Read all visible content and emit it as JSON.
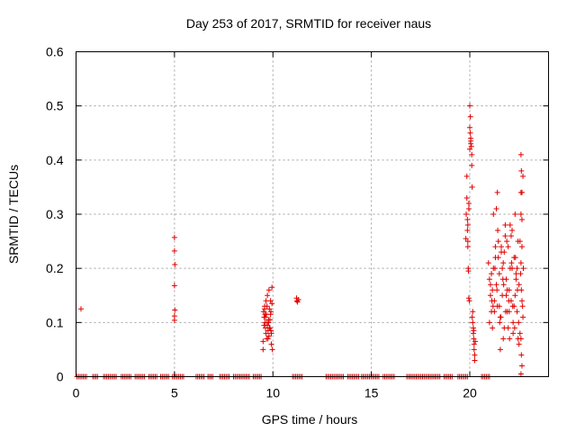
{
  "chart_data": {
    "type": "scatter",
    "title": "Day 253 of 2017, SRMTID for receiver naus",
    "xlabel": "GPS time / hours",
    "ylabel": "SRMTID / TECUs",
    "xlim": [
      0,
      24
    ],
    "ylim": [
      0,
      0.6
    ],
    "x_ticks": [
      0,
      5,
      10,
      15,
      20
    ],
    "y_ticks": [
      0,
      0.1,
      0.2,
      0.3,
      0.4,
      0.5,
      0.6
    ],
    "x_tick_labels": [
      "0",
      "5",
      "10",
      "15",
      "20"
    ],
    "y_tick_labels": [
      "0",
      "0.1",
      "0.2",
      "0.3",
      "0.4",
      "0.5",
      "0.6"
    ],
    "grid": true,
    "marker": "plus",
    "color": "#e00000",
    "series": [
      {
        "name": "SRMTID",
        "x": [
          0.25,
          5.0,
          5.0,
          5.02,
          5.0,
          5.02,
          5.0,
          5.0,
          9.5,
          9.52,
          9.55,
          9.58,
          9.6,
          9.62,
          9.65,
          9.67,
          9.7,
          9.72,
          9.75,
          9.78,
          9.8,
          9.82,
          9.85,
          9.88,
          9.9,
          9.92,
          9.95,
          9.97,
          9.6,
          9.7,
          9.8,
          9.9,
          9.55,
          9.65,
          9.75,
          9.85,
          9.95,
          9.5,
          9.62,
          9.72,
          9.82,
          9.92,
          9.58,
          9.68,
          9.78,
          9.88,
          11.2,
          11.25,
          11.3,
          11.22,
          19.8,
          19.82,
          19.85,
          19.88,
          19.9,
          19.95,
          20.0,
          20.02,
          20.05,
          19.85,
          19.9,
          19.92,
          19.95,
          19.98,
          20.0,
          20.05,
          20.1,
          20.12,
          20.15,
          20.18,
          20.2,
          20.22,
          20.25,
          20.28,
          19.9,
          19.95,
          20.0,
          20.05,
          20.1,
          20.15,
          20.2,
          20.25,
          19.88,
          19.93,
          20.03,
          20.08,
          20.12,
          20.18,
          20.22,
          20.95,
          21.0,
          21.05,
          21.1,
          21.15,
          21.2,
          21.25,
          21.3,
          21.35,
          21.4,
          21.45,
          21.5,
          21.55,
          21.6,
          21.65,
          21.7,
          21.75,
          21.8,
          21.85,
          21.9,
          21.95,
          22.0,
          22.05,
          22.1,
          22.15,
          22.2,
          22.25,
          22.3,
          22.35,
          22.4,
          22.45,
          22.5,
          22.55,
          22.6,
          22.65,
          22.7,
          21.0,
          21.1,
          21.2,
          21.3,
          21.4,
          21.5,
          21.6,
          21.7,
          21.8,
          21.9,
          22.0,
          22.1,
          22.2,
          22.3,
          22.4,
          22.5,
          22.6,
          22.7,
          21.05,
          21.15,
          21.25,
          21.35,
          21.45,
          21.55,
          21.65,
          21.75,
          21.85,
          21.95,
          22.05,
          22.15,
          22.25,
          22.35,
          22.45,
          22.55,
          22.65,
          21.12,
          21.28,
          21.42,
          21.58,
          21.72,
          21.88,
          22.02,
          22.18,
          22.32,
          22.48,
          22.62,
          22.72,
          21.18,
          21.38,
          21.52,
          21.68,
          21.82,
          21.98,
          22.12,
          22.28,
          22.42,
          22.58,
          22.68,
          22.6,
          22.62,
          22.65,
          22.6,
          22.65,
          22.6,
          22.62,
          22.65,
          22.6
        ],
        "y": [
          0.125,
          0.257,
          0.232,
          0.207,
          0.168,
          0.123,
          0.112,
          0.104,
          0.05,
          0.12,
          0.11,
          0.13,
          0.1,
          0.09,
          0.08,
          0.115,
          0.13,
          0.095,
          0.07,
          0.105,
          0.16,
          0.125,
          0.09,
          0.14,
          0.085,
          0.06,
          0.165,
          0.05,
          0.115,
          0.1,
          0.075,
          0.12,
          0.095,
          0.14,
          0.085,
          0.105,
          0.135,
          0.065,
          0.11,
          0.15,
          0.09,
          0.08,
          0.125,
          0.07,
          0.1,
          0.115,
          0.145,
          0.138,
          0.142,
          0.14,
          0.255,
          0.3,
          0.33,
          0.29,
          0.28,
          0.32,
          0.5,
          0.45,
          0.43,
          0.37,
          0.24,
          0.2,
          0.145,
          0.14,
          0.42,
          0.44,
          0.41,
          0.35,
          0.1,
          0.08,
          0.07,
          0.05,
          0.03,
          0.065,
          0.25,
          0.31,
          0.46,
          0.435,
          0.39,
          0.12,
          0.085,
          0.04,
          0.27,
          0.195,
          0.48,
          0.425,
          0.11,
          0.09,
          0.06,
          0.21,
          0.18,
          0.15,
          0.12,
          0.16,
          0.2,
          0.14,
          0.22,
          0.17,
          0.13,
          0.25,
          0.19,
          0.11,
          0.23,
          0.15,
          0.21,
          0.09,
          0.26,
          0.18,
          0.12,
          0.24,
          0.16,
          0.2,
          0.14,
          0.27,
          0.1,
          0.22,
          0.15,
          0.19,
          0.12,
          0.25,
          0.17,
          0.08,
          0.21,
          0.14,
          0.11,
          0.1,
          0.19,
          0.3,
          0.24,
          0.34,
          0.13,
          0.24,
          0.07,
          0.28,
          0.16,
          0.12,
          0.26,
          0.08,
          0.3,
          0.2,
          0.06,
          0.34,
          0.37,
          0.17,
          0.09,
          0.12,
          0.31,
          0.22,
          0.05,
          0.2,
          0.23,
          0.15,
          0.09,
          0.28,
          0.2,
          0.13,
          0.18,
          0.07,
          0.25,
          0.29,
          0.14,
          0.2,
          0.27,
          0.11,
          0.17,
          0.25,
          0.07,
          0.13,
          0.22,
          0.1,
          0.16,
          0.2,
          0.13,
          0.16,
          0.1,
          0.18,
          0.12,
          0.14,
          0.21,
          0.09,
          0.16,
          0.19,
          0.13,
          0.41,
          0.38,
          0.34,
          0.3,
          0.24,
          0.07,
          0.04,
          0.02,
          0.005
        ],
        "zeros_x_ranges": [
          [
            0.05,
            0.6
          ],
          [
            0.85,
            1.15
          ],
          [
            1.4,
            2.1
          ],
          [
            2.3,
            2.8
          ],
          [
            3.0,
            3.5
          ],
          [
            3.7,
            4.1
          ],
          [
            4.3,
            4.7
          ],
          [
            4.9,
            5.5
          ],
          [
            6.1,
            6.5
          ],
          [
            6.7,
            7.0
          ],
          [
            7.3,
            7.8
          ],
          [
            8.0,
            8.8
          ],
          [
            9.0,
            9.45
          ],
          [
            11.0,
            11.5
          ],
          [
            12.7,
            13.6
          ],
          [
            13.8,
            14.4
          ],
          [
            14.5,
            15.4
          ],
          [
            15.6,
            16.2
          ],
          [
            16.8,
            18.5
          ],
          [
            18.7,
            19.1
          ],
          [
            19.4,
            19.9
          ],
          [
            20.6,
            21.0
          ]
        ]
      }
    ]
  }
}
